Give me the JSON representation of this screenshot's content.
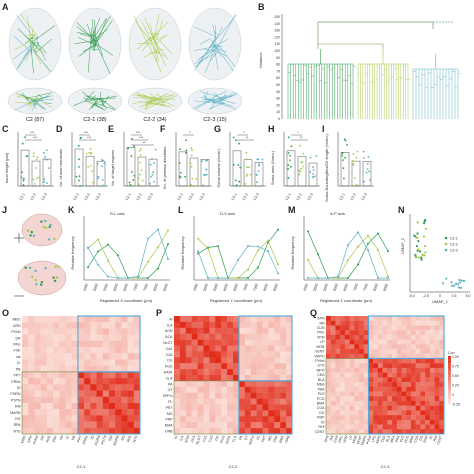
{
  "colors": {
    "c21": "#2e9d4e",
    "c22": "#a6c94a",
    "c23": "#5fb3c7",
    "heat_hi": "#e8321e",
    "heat_lo": "#fbe3dc",
    "frame": "#4fa8d8"
  },
  "panels": {
    "A": "A",
    "B": "B",
    "C": "C",
    "D": "D",
    "E": "E",
    "F": "F",
    "G": "G",
    "H": "H",
    "I": "I",
    "J": "J",
    "K": "K",
    "L": "L",
    "M": "M",
    "N": "N",
    "O": "O",
    "P": "P",
    "Q": "Q"
  },
  "brain_captions": [
    "C2 (87)",
    "C2-1 (38)",
    "C2-2 (34)",
    "C2-3 (15)"
  ],
  "dendrogram": {
    "ylabel": "Distance",
    "yticks": [
      "0",
      "10",
      "20",
      "30",
      "40",
      "50",
      "60",
      "70",
      "80",
      "90",
      "100",
      "110",
      "120",
      "130",
      "140",
      "150"
    ]
  },
  "bar_panels": [
    {
      "ylabel": "Axon length (µm)",
      "stars": [
        "***",
        "***"
      ]
    },
    {
      "ylabel": "No. of axon terminals",
      "stars": [
        "***",
        "***"
      ]
    },
    {
      "ylabel": "No. of target regions",
      "stars": [
        "***",
        "***",
        "**"
      ]
    },
    {
      "ylabel": "No. of primary dendrites",
      "stars": [
        "*"
      ]
    },
    {
      "ylabel": "Soma volume (Norm.)",
      "stars": [
        "*",
        "**"
      ]
    },
    {
      "ylabel": "Soma area (Norm.)",
      "stars": [
        "*",
        "**"
      ]
    },
    {
      "ylabel": "Soma BoundingBoxOD length (Norm.)",
      "stars": []
    }
  ],
  "group_labels": [
    "C2-1",
    "C2-2",
    "C2-3"
  ],
  "freq_panels": [
    {
      "title": "R-L axis",
      "xlabel": "Registered X coordinate (µm)",
      "ylabel": "Relative frequency"
    },
    {
      "title": "D-V axis",
      "xlabel": "Registered Y coordinate (µm)",
      "ylabel": "Relative frequency"
    },
    {
      "title": "A-P axis",
      "xlabel": "Registered Z coordinate (µm)",
      "ylabel": "Relative frequency"
    }
  ],
  "umap": {
    "xlabel": "UMAP_1",
    "ylabel": "UMAP_2",
    "xticks": [
      "-5.0",
      "-2.5",
      "0",
      "2.5",
      "5.0"
    ],
    "legend": [
      "C2-1",
      "C2-2",
      "C2-3"
    ]
  },
  "heatmap_O": {
    "xlabel": "C2-1",
    "rows": [
      "MBO",
      "ARH",
      "PVHd",
      "DR",
      "PAG",
      "VIIIn",
      "cst",
      "IC",
      "PB",
      "PPY",
      "PRNc",
      "IO",
      "PGRN",
      "PSTN",
      "RM",
      "MARN",
      "RO",
      "RPA",
      "NTS"
    ]
  },
  "heatmap_P": {
    "xlabel": "C2-2",
    "rows": [
      "AI",
      "ILA",
      "AON",
      "ACA",
      "NLOT",
      "CA1",
      "CA3",
      "DG",
      "ProS",
      "HATA",
      "CLA",
      "PA",
      "OT",
      "SPFm",
      "PL",
      "PRT",
      "MO",
      "FRP",
      "BMA",
      "ORB"
    ]
  },
  "heatmap_Q": {
    "xlabel": "C2-3",
    "rows": [
      "SPN",
      "RN",
      "CUN",
      "PRC",
      "VPM",
      "LP",
      "MOB",
      "VENT",
      "VMPO",
      "PVHd",
      "LPO",
      "MPO",
      "CEA",
      "BLA",
      "MEA",
      "PAA",
      "PVZ",
      "PCG",
      "BMA",
      "COA",
      "DG",
      "RHP",
      "IO",
      "RHI",
      "CENT"
    ],
    "colorbar_title": "Corr",
    "colorbar_ticks": [
      "1.00",
      "0.75",
      "0.50",
      "0.25",
      "0",
      "-0.25"
    ]
  }
}
